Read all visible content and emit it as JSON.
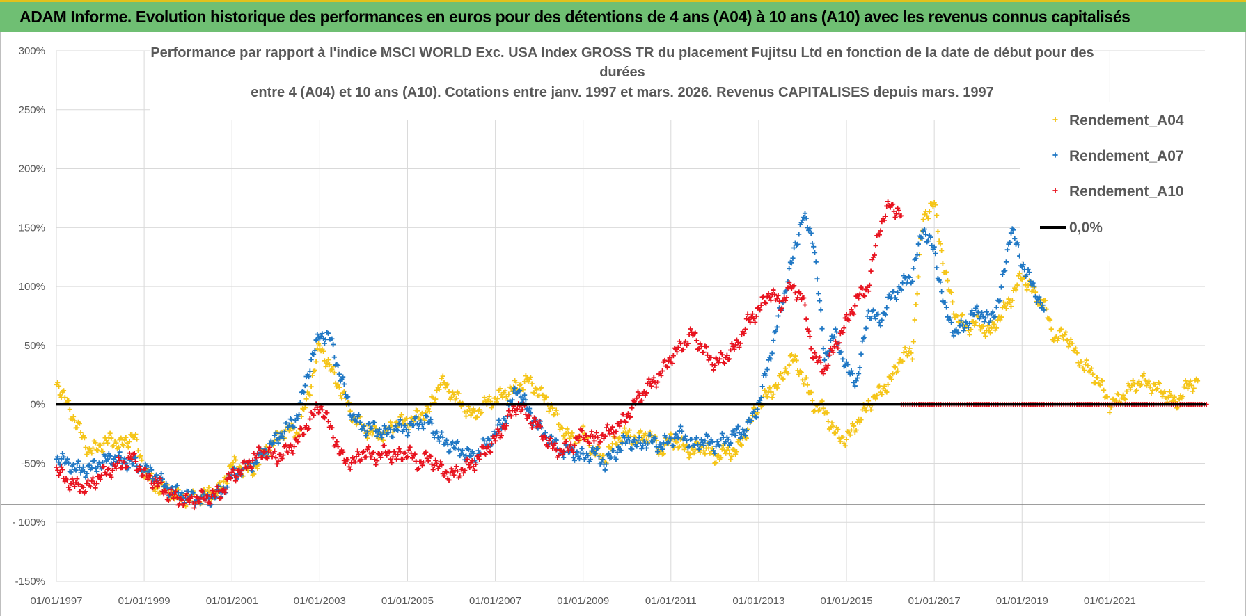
{
  "banner": {
    "title": "ADAM Informe. Evolution historique des performances en euros pour des détentions de 4 ans (A04) à 10 ans (A10) avec les revenus connus capitalisés"
  },
  "colors": {
    "banner_bg": "#6fbf73",
    "banner_top_border": "#e2c11c",
    "A04": "#f5c518",
    "A07": "#1f77c4",
    "A10": "#e8121e",
    "zero_line": "#000000",
    "grid": "#d9d9d9"
  },
  "chart_data": {
    "type": "scatter",
    "title_lines": [
      "Performance par rapport à l'indice MSCI WORLD Exc. USA Index GROSS TR  du placement Fujitsu Ltd en fonction de la date de début pour des",
      "durées",
      "entre 4 (A04) et 10 ans (A10).  Cotations entre janv. 1997 et mars. 2026. Revenus CAPITALISES depuis mars. 1997"
    ],
    "xlim": [
      "1997-01-01",
      "2023-03-01"
    ],
    "ylim": [
      -150,
      300
    ],
    "y_ticks": [
      300,
      250,
      200,
      150,
      100,
      50,
      0,
      -50,
      -100,
      -150
    ],
    "y_tick_labels": [
      "300%",
      "250%",
      "200%",
      "150%",
      "100%",
      "50%",
      "0%",
      "-50%",
      "- 100%",
      "-150%"
    ],
    "x_ticks": [
      "1997-01-01",
      "1999-01-01",
      "2001-01-01",
      "2003-01-01",
      "2005-01-01",
      "2007-01-01",
      "2009-01-01",
      "2011-01-01",
      "2013-01-01",
      "2015-01-01",
      "2017-01-01",
      "2019-01-01",
      "2021-01-01"
    ],
    "x_tick_labels": [
      "01/01/1997",
      "01/01/1999",
      "01/01/2001",
      "01/01/2003",
      "01/01/2005",
      "01/01/2007",
      "01/01/2009",
      "01/01/2011",
      "01/01/2013",
      "01/01/2015",
      "01/01/2017",
      "01/01/2019",
      "01/01/2021"
    ],
    "grid": true,
    "legend_position": "top-right",
    "legend": [
      {
        "label": "Rendement_A04",
        "marker": "+",
        "color_key": "A04"
      },
      {
        "label": "Rendement_A07",
        "marker": "+",
        "color_key": "A07"
      },
      {
        "label": "Rendement_A10",
        "marker": "+",
        "color_key": "A10"
      },
      {
        "label": "0,0%",
        "marker": "line",
        "color_key": "zero_line"
      }
    ],
    "zero_line_value": 0,
    "series": [
      {
        "name": "Rendement_A04",
        "color_key": "A04",
        "x": [
          1997.0,
          1997.25,
          1997.5,
          1997.75,
          1998.0,
          1998.25,
          1998.5,
          1998.75,
          1999.0,
          1999.25,
          1999.5,
          1999.75,
          2000.0,
          2000.25,
          2000.5,
          2000.75,
          2001.0,
          2001.25,
          2001.5,
          2001.75,
          2002.0,
          2002.25,
          2002.5,
          2002.75,
          2003.0,
          2003.25,
          2003.5,
          2003.75,
          2004.0,
          2004.25,
          2004.5,
          2004.75,
          2005.0,
          2005.25,
          2005.5,
          2005.75,
          2006.0,
          2006.25,
          2006.5,
          2006.75,
          2007.0,
          2007.25,
          2007.5,
          2007.75,
          2008.0,
          2008.25,
          2008.5,
          2008.75,
          2009.0,
          2009.25,
          2009.5,
          2009.75,
          2010.0,
          2010.25,
          2010.5,
          2010.75,
          2011.0,
          2011.25,
          2011.5,
          2011.75,
          2012.0,
          2012.25,
          2012.5,
          2012.75,
          2013.0,
          2013.25,
          2013.5,
          2013.75,
          2014.0,
          2014.25,
          2014.5,
          2014.75,
          2015.0,
          2015.25,
          2015.5,
          2015.75,
          2016.0,
          2016.25,
          2016.5,
          2016.75,
          2017.0,
          2017.25,
          2017.5,
          2017.75,
          2018.0,
          2018.25,
          2018.5,
          2018.75,
          2019.0,
          2019.25,
          2019.5,
          2019.75,
          2020.0,
          2020.25,
          2020.5,
          2020.75,
          2021.0,
          2021.25,
          2021.5,
          2021.75,
          2022.0,
          2022.25,
          2022.5,
          2022.75,
          2023.0
        ],
        "y": [
          20,
          0,
          -20,
          -40,
          -35,
          -30,
          -35,
          -25,
          -55,
          -70,
          -72,
          -78,
          -80,
          -80,
          -75,
          -72,
          -50,
          -55,
          -55,
          -40,
          -30,
          -20,
          -25,
          10,
          50,
          30,
          10,
          -10,
          -20,
          -25,
          -25,
          -15,
          -15,
          -10,
          -5,
          20,
          10,
          0,
          -10,
          0,
          5,
          10,
          15,
          20,
          10,
          0,
          -20,
          -30,
          -25,
          -40,
          -45,
          -30,
          -25,
          -30,
          -25,
          -40,
          -30,
          -35,
          -40,
          -35,
          -45,
          -40,
          -40,
          -20,
          0,
          10,
          20,
          40,
          25,
          0,
          -5,
          -25,
          -30,
          -15,
          0,
          10,
          20,
          40,
          45,
          160,
          170,
          110,
          75,
          65,
          70,
          60,
          75,
          90,
          110,
          95,
          85,
          55,
          60,
          40,
          30,
          20,
          0,
          5,
          15,
          20,
          15,
          10,
          0,
          15,
          20
        ]
      },
      {
        "name": "Rendement_A07",
        "color_key": "A07",
        "x": [
          1997.0,
          1997.25,
          1997.5,
          1997.75,
          1998.0,
          1998.25,
          1998.5,
          1998.75,
          1999.0,
          1999.25,
          1999.5,
          1999.75,
          2000.0,
          2000.25,
          2000.5,
          2000.75,
          2001.0,
          2001.25,
          2001.5,
          2001.75,
          2002.0,
          2002.25,
          2002.5,
          2002.75,
          2003.0,
          2003.25,
          2003.5,
          2003.75,
          2004.0,
          2004.25,
          2004.5,
          2004.75,
          2005.0,
          2005.25,
          2005.5,
          2005.75,
          2006.0,
          2006.25,
          2006.5,
          2006.75,
          2007.0,
          2007.25,
          2007.5,
          2007.75,
          2008.0,
          2008.25,
          2008.5,
          2008.75,
          2009.0,
          2009.25,
          2009.5,
          2009.75,
          2010.0,
          2010.25,
          2010.5,
          2010.75,
          2011.0,
          2011.25,
          2011.5,
          2011.75,
          2012.0,
          2012.25,
          2012.5,
          2012.75,
          2013.0,
          2013.25,
          2013.5,
          2013.75,
          2014.0,
          2014.25,
          2014.5,
          2014.75,
          2015.0,
          2015.25,
          2015.5,
          2015.75,
          2016.0,
          2016.25,
          2016.5,
          2016.75,
          2017.0,
          2017.25,
          2017.5,
          2017.75,
          2018.0,
          2018.25,
          2018.5,
          2018.75,
          2019.0,
          2019.25,
          2019.5
        ],
        "y": [
          -45,
          -50,
          -55,
          -55,
          -50,
          -45,
          -48,
          -50,
          -55,
          -60,
          -70,
          -75,
          -78,
          -80,
          -80,
          -75,
          -60,
          -55,
          -50,
          -40,
          -30,
          -20,
          -10,
          30,
          60,
          55,
          20,
          -10,
          -20,
          -20,
          -25,
          -20,
          -20,
          -15,
          -15,
          -30,
          -35,
          -40,
          -45,
          -35,
          -25,
          -10,
          15,
          -5,
          -20,
          -30,
          -40,
          -40,
          -45,
          -40,
          -50,
          -40,
          -30,
          -35,
          -30,
          -35,
          -30,
          -25,
          -35,
          -30,
          -35,
          -30,
          -25,
          -20,
          0,
          40,
          80,
          120,
          160,
          140,
          40,
          60,
          30,
          20,
          80,
          70,
          90,
          100,
          110,
          150,
          130,
          80,
          60,
          70,
          80,
          70,
          90,
          150,
          120,
          100,
          80
        ]
      },
      {
        "name": "Rendement_A10",
        "color_key": "A10",
        "x": [
          1997.0,
          1997.25,
          1997.5,
          1997.75,
          1998.0,
          1998.25,
          1998.5,
          1998.75,
          1999.0,
          1999.25,
          1999.5,
          1999.75,
          2000.0,
          2000.25,
          2000.5,
          2000.75,
          2001.0,
          2001.25,
          2001.5,
          2001.75,
          2002.0,
          2002.25,
          2002.5,
          2002.75,
          2003.0,
          2003.25,
          2003.5,
          2003.75,
          2004.0,
          2004.25,
          2004.5,
          2004.75,
          2005.0,
          2005.25,
          2005.5,
          2005.75,
          2006.0,
          2006.25,
          2006.5,
          2006.75,
          2007.0,
          2007.25,
          2007.5,
          2007.75,
          2008.0,
          2008.25,
          2008.5,
          2008.75,
          2009.0,
          2009.25,
          2009.5,
          2009.75,
          2010.0,
          2010.25,
          2010.5,
          2010.75,
          2011.0,
          2011.25,
          2011.5,
          2011.75,
          2012.0,
          2012.25,
          2012.5,
          2012.75,
          2013.0,
          2013.25,
          2013.5,
          2013.75,
          2014.0,
          2014.25,
          2014.5,
          2014.75,
          2015.0,
          2015.25,
          2015.5,
          2015.75,
          2016.0,
          2016.25
        ],
        "y": [
          -55,
          -65,
          -70,
          -70,
          -60,
          -55,
          -50,
          -45,
          -60,
          -65,
          -75,
          -80,
          -82,
          -80,
          -78,
          -75,
          -60,
          -55,
          -45,
          -40,
          -45,
          -40,
          -30,
          -15,
          0,
          -20,
          -45,
          -50,
          -40,
          -45,
          -40,
          -45,
          -40,
          -50,
          -45,
          -55,
          -60,
          -55,
          -50,
          -40,
          -30,
          -15,
          0,
          -10,
          -20,
          -35,
          -40,
          -35,
          -25,
          -30,
          -25,
          -20,
          -10,
          5,
          15,
          25,
          40,
          50,
          60,
          45,
          35,
          40,
          50,
          70,
          80,
          95,
          85,
          100,
          90,
          40,
          30,
          50,
          70,
          90,
          100,
          150,
          170,
          160
        ]
      },
      {
        "name": "0,0%",
        "color_key": "zero_line",
        "x": [
          1997.0,
          2023.2
        ],
        "y": [
          0,
          0
        ]
      }
    ]
  }
}
